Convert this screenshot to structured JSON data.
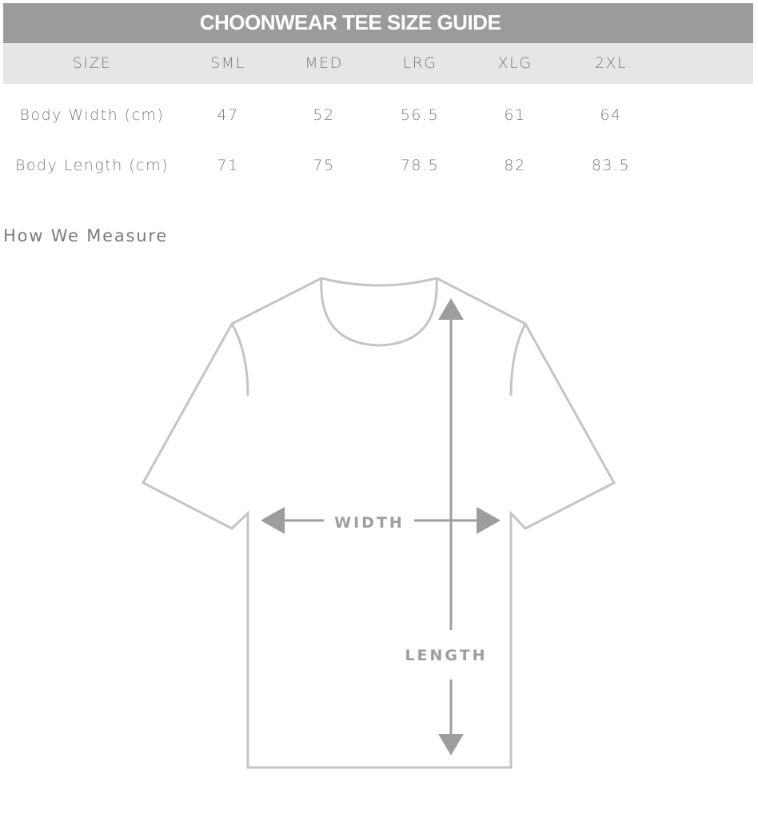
{
  "title": "CHOONWEAR TEE SIZE GUIDE",
  "table": {
    "header": [
      "SIZE",
      "SML",
      "MED",
      "LRG",
      "XLG",
      "2XL"
    ],
    "rows": [
      {
        "label": "Body Width (cm)",
        "values": [
          "47",
          "52",
          "56.5",
          "61",
          "64"
        ]
      },
      {
        "label": "Body Length (cm)",
        "values": [
          "71",
          "75",
          "78.5",
          "82",
          "83.5"
        ]
      }
    ]
  },
  "section_title": "How We Measure",
  "diagram": {
    "width_label": "WIDTH",
    "length_label": "LENGTH"
  },
  "colors": {
    "header_bg": "#9b9b9b",
    "size_row_bg": "#e6e6e6",
    "outline": "#c4c4c4",
    "arrow": "#9d9d9f"
  }
}
